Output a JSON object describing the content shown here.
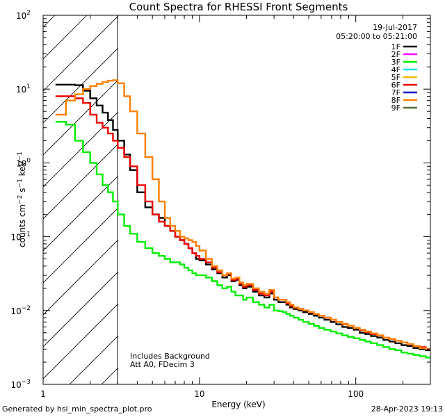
{
  "chart_data": {
    "type": "line",
    "title": "Count Spectra for RHESSI Front Segments",
    "xlabel": "Energy (keV)",
    "ylabel_parts": [
      "counts cm",
      "−2",
      " s",
      "−1",
      " keV",
      "−1"
    ],
    "xscale": "log",
    "yscale": "log",
    "xlim": [
      1,
      300
    ],
    "ylim": [
      0.001,
      100
    ],
    "x_ticks": [
      {
        "value": 1,
        "label": "1"
      },
      {
        "value": 10,
        "label": "10"
      },
      {
        "value": 100,
        "label": "100"
      }
    ],
    "y_ticks": [
      {
        "value": 0.001,
        "base": "10",
        "exp": "−3"
      },
      {
        "value": 0.01,
        "base": "10",
        "exp": "−2"
      },
      {
        "value": 0.1,
        "base": "10",
        "exp": "−1"
      },
      {
        "value": 1,
        "base": "10",
        "exp": "0"
      },
      {
        "value": 10,
        "base": "10",
        "exp": "1"
      },
      {
        "value": 100,
        "base": "10",
        "exp": "2"
      }
    ],
    "date": "19-Jul-2017",
    "time_range": "05:20:00 to 05:21:00",
    "annotations": [
      "Includes Background",
      "Att A0, FDecim 3"
    ],
    "hatched_region": {
      "x_from": 1,
      "x_to": 3
    },
    "energy_bins": [
      1.2,
      1.4,
      1.6,
      1.8,
      2.0,
      2.2,
      2.4,
      2.6,
      2.8,
      3.0,
      3.3,
      3.6,
      4.0,
      4.5,
      5.0,
      5.5,
      6.0,
      6.5,
      7.0,
      7.5,
      8.0,
      8.5,
      9.0,
      9.5,
      10,
      11,
      12,
      13,
      14,
      15,
      16,
      17,
      18,
      19,
      20,
      22,
      24,
      26,
      28,
      30,
      32,
      34,
      36,
      38,
      40,
      43,
      46,
      50,
      54,
      58,
      63,
      69,
      75,
      82,
      89,
      97,
      106,
      115,
      125,
      137,
      150,
      164,
      179,
      196,
      214,
      234,
      256,
      280,
      300
    ],
    "series": [
      {
        "name": "1F",
        "color": "#000000",
        "values": [
          11.5,
          11.5,
          11.3,
          9.5,
          7.5,
          6.0,
          4.8,
          3.8,
          2.8,
          2.0,
          1.3,
          0.8,
          0.4,
          0.25,
          0.2,
          0.18,
          0.14,
          0.12,
          0.1,
          0.09,
          0.08,
          0.07,
          0.06,
          0.05,
          0.048,
          0.042,
          0.036,
          0.032,
          0.028,
          0.03,
          0.025,
          0.026,
          0.022,
          0.02,
          0.021,
          0.018,
          0.016,
          0.015,
          0.017,
          0.014,
          0.013,
          0.013,
          0.012,
          0.011,
          0.0105,
          0.01,
          0.0095,
          0.009,
          0.0085,
          0.008,
          0.0075,
          0.007,
          0.0065,
          0.006,
          0.0058,
          0.0055,
          0.005,
          0.0048,
          0.0045,
          0.0043,
          0.004,
          0.0038,
          0.0036,
          0.0034,
          0.0033,
          0.0031,
          0.003,
          0.0029
        ]
      },
      {
        "name": "2F",
        "color": "#ff00ff",
        "values": []
      },
      {
        "name": "3F",
        "color": "#00ee00",
        "values": [
          3.6,
          3.3,
          2.0,
          1.4,
          1.0,
          0.7,
          0.5,
          0.4,
          0.3,
          0.2,
          0.14,
          0.11,
          0.085,
          0.07,
          0.06,
          0.055,
          0.05,
          0.045,
          0.045,
          0.042,
          0.038,
          0.035,
          0.032,
          0.03,
          0.03,
          0.028,
          0.025,
          0.022,
          0.02,
          0.021,
          0.018,
          0.016,
          0.016,
          0.014,
          0.015,
          0.013,
          0.012,
          0.011,
          0.012,
          0.01,
          0.0098,
          0.0095,
          0.009,
          0.0085,
          0.008,
          0.0075,
          0.007,
          0.0066,
          0.0062,
          0.0058,
          0.0055,
          0.0052,
          0.0049,
          0.0046,
          0.0044,
          0.0042,
          0.004,
          0.0038,
          0.0036,
          0.0034,
          0.0032,
          0.003,
          0.0029,
          0.0027,
          0.0026,
          0.0025,
          0.0024,
          0.0023
        ]
      },
      {
        "name": "4F",
        "color": "#00e5ee",
        "values": []
      },
      {
        "name": "5F",
        "color": "#eebb00",
        "values": []
      },
      {
        "name": "6F",
        "color": "#ee0000",
        "values": [
          8.0,
          8.0,
          7.5,
          6.5,
          4.5,
          3.5,
          3.0,
          2.5,
          2.0,
          1.6,
          1.2,
          0.9,
          0.5,
          0.3,
          0.2,
          0.16,
          0.14,
          0.12,
          0.1,
          0.09,
          0.08,
          0.07,
          0.06,
          0.055,
          0.05,
          0.045,
          0.038,
          0.033,
          0.03,
          0.031,
          0.026,
          0.027,
          0.023,
          0.021,
          0.022,
          0.019,
          0.017,
          0.016,
          0.018,
          0.015,
          0.014,
          0.014,
          0.0125,
          0.0115,
          0.011,
          0.0105,
          0.01,
          0.0095,
          0.009,
          0.0085,
          0.008,
          0.0075,
          0.007,
          0.0065,
          0.0062,
          0.0058,
          0.0054,
          0.0051,
          0.0048,
          0.0046,
          0.0043,
          0.0041,
          0.0039,
          0.0037,
          0.0035,
          0.0033,
          0.0032,
          0.003
        ]
      },
      {
        "name": "7F",
        "color": "#0000cd",
        "values": []
      },
      {
        "name": "8F",
        "color": "#ff7f00",
        "values": [
          4.5,
          7.0,
          8.5,
          10.0,
          11.0,
          11.8,
          12.5,
          13.0,
          13.2,
          12.0,
          8.0,
          5.0,
          2.5,
          1.2,
          0.6,
          0.3,
          0.18,
          0.14,
          0.12,
          0.1,
          0.095,
          0.09,
          0.085,
          0.075,
          0.065,
          0.05,
          0.04,
          0.035,
          0.03,
          0.032,
          0.027,
          0.028,
          0.024,
          0.022,
          0.023,
          0.02,
          0.018,
          0.017,
          0.019,
          0.015,
          0.014,
          0.014,
          0.013,
          0.012,
          0.011,
          0.0105,
          0.01,
          0.0095,
          0.009,
          0.0085,
          0.008,
          0.0075,
          0.007,
          0.0066,
          0.0062,
          0.0058,
          0.0055,
          0.0052,
          0.0049,
          0.0046,
          0.0043,
          0.0041,
          0.0039,
          0.0037,
          0.0035,
          0.0033,
          0.0031,
          0.003
        ]
      },
      {
        "name": "9F",
        "color": "#556b2f",
        "values": []
      }
    ]
  },
  "footer": {
    "generated_by": "Generated by hsi_min_spectra_plot.pro",
    "timestamp": "28-Apr-2023 19:13"
  }
}
